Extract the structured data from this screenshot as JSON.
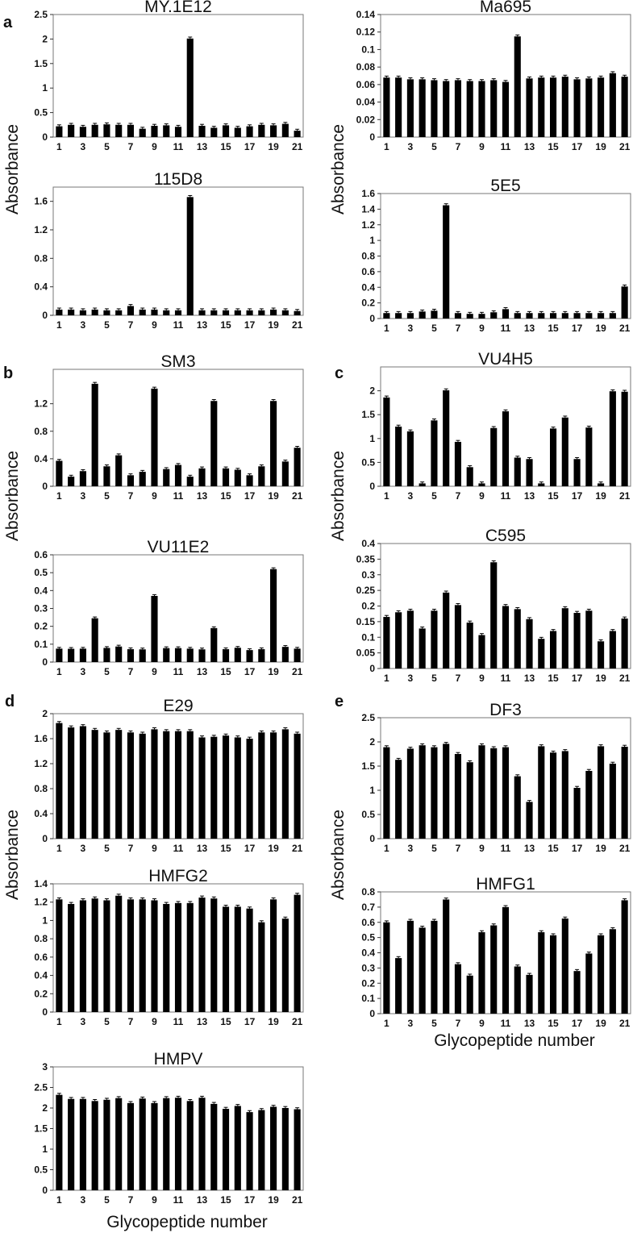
{
  "panel_letters": [
    "a",
    "b",
    "c",
    "d",
    "e"
  ],
  "ylabel": "Absorbance",
  "xlabel": "Glycopeptide number",
  "xticks": [
    "1",
    "3",
    "5",
    "7",
    "9",
    "11",
    "13",
    "15",
    "17",
    "19",
    "21"
  ],
  "chart_data": [
    {
      "type": "bar",
      "title": "MY.1E12",
      "ylim": [
        0,
        2.5
      ],
      "yticks": [
        "0",
        "0.5",
        "1",
        "1.5",
        "2",
        "2.5"
      ],
      "x": [
        1,
        2,
        3,
        4,
        5,
        6,
        7,
        8,
        9,
        10,
        11,
        12,
        13,
        14,
        15,
        16,
        17,
        18,
        19,
        20,
        21
      ],
      "values": [
        0.22,
        0.25,
        0.21,
        0.25,
        0.26,
        0.25,
        0.25,
        0.17,
        0.23,
        0.24,
        0.21,
        2.01,
        0.23,
        0.19,
        0.24,
        0.19,
        0.22,
        0.25,
        0.24,
        0.27,
        0.13
      ]
    },
    {
      "type": "bar",
      "title": "Ma695",
      "ylim": [
        0,
        0.14
      ],
      "yticks": [
        "0",
        "0.02",
        "0.04",
        "0.06",
        "0.08",
        "0.1",
        "0.12",
        "0.14"
      ],
      "x": [
        1,
        2,
        3,
        4,
        5,
        6,
        7,
        8,
        9,
        10,
        11,
        12,
        13,
        14,
        15,
        16,
        17,
        18,
        19,
        20,
        21
      ],
      "values": [
        0.068,
        0.068,
        0.066,
        0.066,
        0.065,
        0.064,
        0.065,
        0.064,
        0.064,
        0.065,
        0.063,
        0.115,
        0.067,
        0.068,
        0.068,
        0.069,
        0.066,
        0.067,
        0.068,
        0.073,
        0.069
      ]
    },
    {
      "type": "bar",
      "title": "115D8",
      "ylim": [
        0,
        1.8
      ],
      "yticks": [
        "0",
        "0.4",
        "0.8",
        "1.2",
        "1.6"
      ],
      "x": [
        1,
        2,
        3,
        4,
        5,
        6,
        7,
        8,
        9,
        10,
        11,
        12,
        13,
        14,
        15,
        16,
        17,
        18,
        19,
        20,
        21
      ],
      "values": [
        0.08,
        0.08,
        0.07,
        0.08,
        0.07,
        0.07,
        0.13,
        0.08,
        0.08,
        0.07,
        0.07,
        1.66,
        0.07,
        0.07,
        0.07,
        0.07,
        0.07,
        0.07,
        0.08,
        0.07,
        0.06
      ]
    },
    {
      "type": "bar",
      "title": "5E5",
      "ylim": [
        0,
        1.6
      ],
      "yticks": [
        "0",
        "0.2",
        "0.4",
        "0.6",
        "0.8",
        "1",
        "1.2",
        "1.4",
        "1.6"
      ],
      "x": [
        1,
        2,
        3,
        4,
        5,
        6,
        7,
        8,
        9,
        10,
        11,
        12,
        13,
        14,
        15,
        16,
        17,
        18,
        19,
        20,
        21
      ],
      "values": [
        0.07,
        0.07,
        0.07,
        0.09,
        0.1,
        1.45,
        0.07,
        0.06,
        0.06,
        0.08,
        0.12,
        0.07,
        0.07,
        0.07,
        0.07,
        0.07,
        0.07,
        0.07,
        0.07,
        0.07,
        0.41
      ]
    },
    {
      "type": "bar",
      "title": "SM3",
      "ylim": [
        0,
        1.7
      ],
      "yticks": [
        "0",
        "0.4",
        "0.8",
        "1.2"
      ],
      "x": [
        1,
        2,
        3,
        4,
        5,
        6,
        7,
        8,
        9,
        10,
        11,
        12,
        13,
        14,
        15,
        16,
        17,
        18,
        19,
        20,
        21
      ],
      "values": [
        0.37,
        0.14,
        0.22,
        1.49,
        0.29,
        0.45,
        0.16,
        0.21,
        1.42,
        0.25,
        0.31,
        0.14,
        0.26,
        1.24,
        0.26,
        0.24,
        0.16,
        0.29,
        1.24,
        0.36,
        0.56
      ]
    },
    {
      "type": "bar",
      "title": "VU4H5",
      "ylim": [
        0,
        2.5
      ],
      "yticks": [
        "0",
        "0.5",
        "1",
        "1.5",
        "2"
      ],
      "x": [
        1,
        2,
        3,
        4,
        5,
        6,
        7,
        8,
        9,
        10,
        11,
        12,
        13,
        14,
        15,
        16,
        17,
        18,
        19,
        20,
        21
      ],
      "values": [
        1.86,
        1.25,
        1.15,
        0.06,
        1.38,
        2.01,
        0.93,
        0.4,
        0.06,
        1.22,
        1.57,
        0.6,
        0.57,
        0.06,
        1.21,
        1.44,
        0.57,
        1.23,
        0.06,
        1.99,
        1.98
      ]
    },
    {
      "type": "bar",
      "title": "VU11E2",
      "ylim": [
        0,
        0.6
      ],
      "yticks": [
        "0",
        "0.1",
        "0.2",
        "0.3",
        "0.4",
        "0.5",
        "0.6"
      ],
      "x": [
        1,
        2,
        3,
        4,
        5,
        6,
        7,
        8,
        9,
        10,
        11,
        12,
        13,
        14,
        15,
        16,
        17,
        18,
        19,
        20,
        21
      ],
      "values": [
        0.075,
        0.074,
        0.075,
        0.245,
        0.079,
        0.087,
        0.072,
        0.071,
        0.37,
        0.078,
        0.078,
        0.075,
        0.071,
        0.19,
        0.072,
        0.08,
        0.067,
        0.072,
        0.52,
        0.085,
        0.075
      ]
    },
    {
      "type": "bar",
      "title": "C595",
      "ylim": [
        0,
        0.4
      ],
      "yticks": [
        "0",
        "0.05",
        "0.1",
        "0.15",
        "0.2",
        "0.25",
        "0.3",
        "0.35",
        "0.4"
      ],
      "x": [
        1,
        2,
        3,
        4,
        5,
        6,
        7,
        8,
        9,
        10,
        11,
        12,
        13,
        14,
        15,
        16,
        17,
        18,
        19,
        20,
        21
      ],
      "values": [
        0.165,
        0.18,
        0.185,
        0.128,
        0.185,
        0.243,
        0.203,
        0.147,
        0.107,
        0.34,
        0.2,
        0.19,
        0.158,
        0.095,
        0.12,
        0.193,
        0.178,
        0.185,
        0.087,
        0.12,
        0.16
      ]
    },
    {
      "type": "bar",
      "title": "E29",
      "ylim": [
        0,
        2
      ],
      "yticks": [
        "0",
        "0.4",
        "0.8",
        "1.2",
        "1.6",
        "2"
      ],
      "x": [
        1,
        2,
        3,
        4,
        5,
        6,
        7,
        8,
        9,
        10,
        11,
        12,
        13,
        14,
        15,
        16,
        17,
        18,
        19,
        20,
        21
      ],
      "values": [
        1.85,
        1.78,
        1.8,
        1.74,
        1.7,
        1.74,
        1.7,
        1.68,
        1.75,
        1.72,
        1.72,
        1.72,
        1.62,
        1.63,
        1.65,
        1.62,
        1.6,
        1.7,
        1.7,
        1.75,
        1.68
      ]
    },
    {
      "type": "bar",
      "title": "DF3",
      "ylim": [
        0,
        2.5
      ],
      "yticks": [
        "0",
        "0.5",
        "1",
        "1.5",
        "2",
        "2.5"
      ],
      "x": [
        1,
        2,
        3,
        4,
        5,
        6,
        7,
        8,
        9,
        10,
        11,
        12,
        13,
        14,
        15,
        16,
        17,
        18,
        19,
        20,
        21
      ],
      "values": [
        1.89,
        1.63,
        1.86,
        1.93,
        1.89,
        1.96,
        1.75,
        1.58,
        1.93,
        1.87,
        1.89,
        1.29,
        0.76,
        1.91,
        1.78,
        1.81,
        1.05,
        1.4,
        1.91,
        1.55,
        1.9
      ]
    },
    {
      "type": "bar",
      "title": "HMFG2",
      "ylim": [
        0,
        1.4
      ],
      "yticks": [
        "0",
        "0.2",
        "0.4",
        "0.6",
        "0.8",
        "1",
        "1.2",
        "1.4"
      ],
      "x": [
        1,
        2,
        3,
        4,
        5,
        6,
        7,
        8,
        9,
        10,
        11,
        12,
        13,
        14,
        15,
        16,
        17,
        18,
        19,
        20,
        21
      ],
      "values": [
        1.23,
        1.18,
        1.22,
        1.24,
        1.22,
        1.27,
        1.23,
        1.23,
        1.22,
        1.18,
        1.19,
        1.19,
        1.25,
        1.24,
        1.15,
        1.15,
        1.13,
        0.98,
        1.23,
        1.02,
        1.28
      ]
    },
    {
      "type": "bar",
      "title": "HMFG1",
      "ylim": [
        0,
        0.8
      ],
      "yticks": [
        "0",
        "0.1",
        "0.2",
        "0.3",
        "0.4",
        "0.5",
        "0.6",
        "0.7",
        "0.8"
      ],
      "x": [
        1,
        2,
        3,
        4,
        5,
        6,
        7,
        8,
        9,
        10,
        11,
        12,
        13,
        14,
        15,
        16,
        17,
        18,
        19,
        20,
        21
      ],
      "values": [
        0.6,
        0.365,
        0.61,
        0.565,
        0.61,
        0.75,
        0.325,
        0.25,
        0.535,
        0.58,
        0.7,
        0.31,
        0.255,
        0.535,
        0.515,
        0.625,
        0.28,
        0.395,
        0.515,
        0.555,
        0.745
      ]
    },
    {
      "type": "bar",
      "title": "HMPV",
      "ylim": [
        0,
        3
      ],
      "yticks": [
        "0",
        "0.5",
        "1",
        "1.5",
        "2",
        "2.5",
        "3"
      ],
      "x": [
        1,
        2,
        3,
        4,
        5,
        6,
        7,
        8,
        9,
        10,
        11,
        12,
        13,
        14,
        15,
        16,
        17,
        18,
        19,
        20,
        21
      ],
      "values": [
        2.32,
        2.22,
        2.22,
        2.17,
        2.2,
        2.24,
        2.12,
        2.23,
        2.12,
        2.24,
        2.25,
        2.17,
        2.25,
        2.1,
        1.98,
        2.05,
        1.9,
        1.95,
        2.03,
        2.0,
        1.97
      ]
    }
  ]
}
